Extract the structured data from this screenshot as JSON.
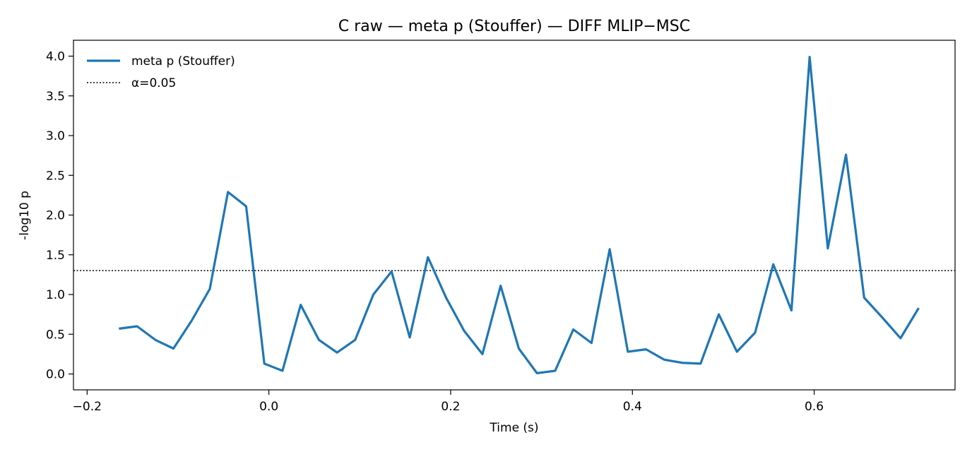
{
  "chart_data": {
    "type": "line",
    "title": "C raw — meta p (Stouffer) — DIFF MLIP−MSC",
    "xlabel": "Time (s)",
    "ylabel": "-log10 p",
    "xlim": [
      -0.215,
      0.755
    ],
    "ylim": [
      -0.2,
      4.2
    ],
    "x_ticks": [
      -0.2,
      0.0,
      0.2,
      0.4,
      0.6
    ],
    "x_tick_labels": [
      "−0.2",
      "0.0",
      "0.2",
      "0.4",
      "0.6"
    ],
    "y_ticks": [
      0.0,
      0.5,
      1.0,
      1.5,
      2.0,
      2.5,
      3.0,
      3.5,
      4.0
    ],
    "y_tick_labels": [
      "0.0",
      "0.5",
      "1.0",
      "1.5",
      "2.0",
      "2.5",
      "3.0",
      "3.5",
      "4.0"
    ],
    "grid": false,
    "legend_position": "top-left",
    "series": [
      {
        "name": "meta p (Stouffer)",
        "color": "#1f77b4",
        "style": "solid",
        "x": [
          -0.165,
          -0.145,
          -0.125,
          -0.105,
          -0.085,
          -0.065,
          -0.045,
          -0.025,
          -0.005,
          0.015,
          0.035,
          0.055,
          0.075,
          0.095,
          0.115,
          0.135,
          0.155,
          0.175,
          0.195,
          0.215,
          0.235,
          0.255,
          0.275,
          0.295,
          0.315,
          0.335,
          0.355,
          0.375,
          0.395,
          0.415,
          0.435,
          0.455,
          0.475,
          0.495,
          0.515,
          0.535,
          0.555,
          0.575,
          0.595,
          0.615,
          0.635,
          0.655,
          0.675,
          0.695,
          0.715
        ],
        "y": [
          0.57,
          0.6,
          0.43,
          0.32,
          0.67,
          1.07,
          2.29,
          2.11,
          0.13,
          0.04,
          0.87,
          0.43,
          0.27,
          0.43,
          1.0,
          1.29,
          0.46,
          1.47,
          0.96,
          0.54,
          0.25,
          1.11,
          0.32,
          0.01,
          0.04,
          0.56,
          0.39,
          1.57,
          0.28,
          0.31,
          0.18,
          0.14,
          0.13,
          0.75,
          0.28,
          0.52,
          1.38,
          0.8,
          3.99,
          1.58,
          2.76,
          0.96,
          0.71,
          0.45,
          0.83
        ]
      }
    ],
    "hlines": [
      {
        "name": "α=0.05",
        "y": 1.30103,
        "color": "#000000",
        "style": "dotted"
      }
    ]
  }
}
